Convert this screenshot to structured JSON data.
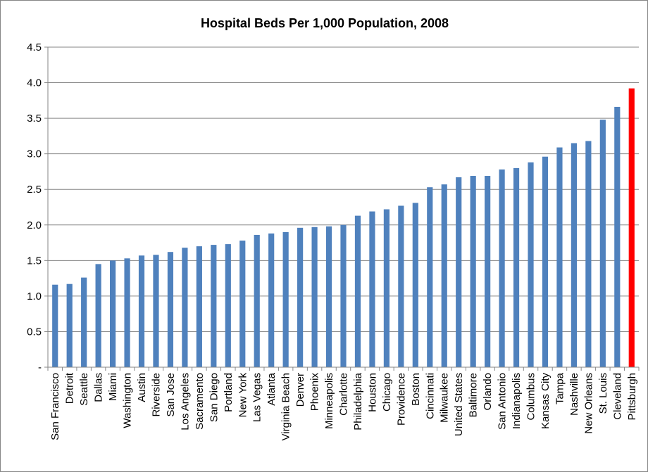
{
  "chart_data": {
    "type": "bar",
    "title": "Hospital Beds Per 1,000 Population, 2008",
    "xlabel": "",
    "ylabel": "",
    "ylim": [
      0,
      4.5
    ],
    "ytick_labels": [
      "-",
      "0.5",
      "1.0",
      "1.5",
      "2.0",
      "2.5",
      "3.0",
      "3.5",
      "4.0",
      "4.5"
    ],
    "ytick_values": [
      0,
      0.5,
      1.0,
      1.5,
      2.0,
      2.5,
      3.0,
      3.5,
      4.0,
      4.5
    ],
    "grid": true,
    "legend": "none",
    "bar_color": "#4F81BD",
    "highlight_color": "#FF0000",
    "highlight_category": "Pittsburgh",
    "categories": [
      "San Francisco",
      "Detroit",
      "Seattle",
      "Dallas",
      "Miami",
      "Washington",
      "Austin",
      "Riverside",
      "San Jose",
      "Los Angeles",
      "Sacramento",
      "San Diego",
      "Portland",
      "New York",
      "Las Vegas",
      "Atlanta",
      "Virginia Beach",
      "Denver",
      "Phoenix",
      "Minneapolis",
      "Charlotte",
      "Philadelphia",
      "Houston",
      "Chicago",
      "Providence",
      "Boston",
      "Cincinnati",
      "Milwaukee",
      "United States",
      "Baltimore",
      "Orlando",
      "San Antonio",
      "Indianapolis",
      "Columbus",
      "Kansas City",
      "Tampa",
      "Nashville",
      "New Orleans",
      "St. Louis",
      "Cleveland",
      "Pittsburgh"
    ],
    "values": [
      1.16,
      1.17,
      1.26,
      1.45,
      1.5,
      1.53,
      1.57,
      1.58,
      1.62,
      1.68,
      1.7,
      1.72,
      1.73,
      1.78,
      1.86,
      1.88,
      1.9,
      1.96,
      1.97,
      1.98,
      2.0,
      2.13,
      2.19,
      2.22,
      2.27,
      2.31,
      2.53,
      2.57,
      2.67,
      2.69,
      2.69,
      2.78,
      2.8,
      2.88,
      2.96,
      3.09,
      3.15,
      3.18,
      3.48,
      3.66,
      3.92
    ]
  }
}
